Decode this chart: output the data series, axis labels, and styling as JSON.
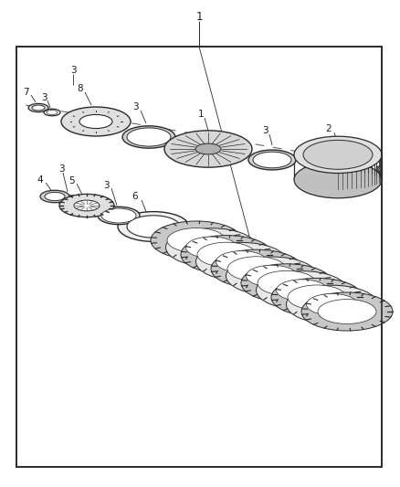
{
  "bg_color": "#ffffff",
  "line_color": "#2a2a2a",
  "text_color": "#1a1a1a",
  "fig_width": 4.38,
  "fig_height": 5.33,
  "dpi": 100
}
